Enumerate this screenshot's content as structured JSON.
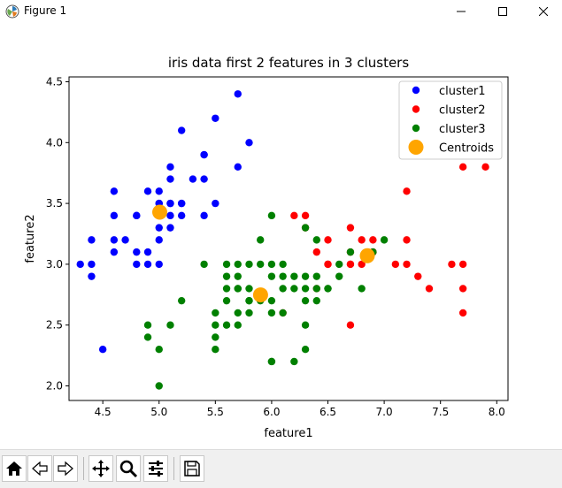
{
  "window": {
    "title": "Figure 1"
  },
  "toolbar": {
    "buttons": [
      {
        "icon": "home-icon"
      },
      {
        "icon": "back-arrow-icon"
      },
      {
        "icon": "forward-arrow-icon"
      },
      {
        "icon": "pan-icon"
      },
      {
        "icon": "zoom-icon"
      },
      {
        "icon": "configure-subplots-icon"
      },
      {
        "icon": "save-icon"
      }
    ]
  },
  "chart_data": {
    "type": "scatter",
    "title": "iris data first 2 features in 3 clusters",
    "xlabel": "feature1",
    "ylabel": "feature2",
    "xlim": [
      4.2,
      8.1
    ],
    "ylim": [
      1.88,
      4.54
    ],
    "xticks": [
      4.5,
      5.0,
      5.5,
      6.0,
      6.5,
      7.0,
      7.5,
      8.0
    ],
    "xtick_labels": [
      "4.5",
      "5.0",
      "5.5",
      "6.0",
      "6.5",
      "7.0",
      "7.5",
      "8.0"
    ],
    "yticks": [
      2.0,
      2.5,
      3.0,
      3.5,
      4.0,
      4.5
    ],
    "ytick_labels": [
      "2.0",
      "2.5",
      "3.0",
      "3.5",
      "4.0",
      "4.5"
    ],
    "grid": false,
    "legend": {
      "placement": "top-right"
    },
    "series": [
      {
        "name": "cluster1",
        "color": "#0000ff",
        "points": [
          [
            4.3,
            3.0
          ],
          [
            4.4,
            2.9
          ],
          [
            4.4,
            3.0
          ],
          [
            4.4,
            3.2
          ],
          [
            4.5,
            2.3
          ],
          [
            4.6,
            3.1
          ],
          [
            4.6,
            3.2
          ],
          [
            4.6,
            3.4
          ],
          [
            4.6,
            3.6
          ],
          [
            4.7,
            3.2
          ],
          [
            4.8,
            3.0
          ],
          [
            4.8,
            3.1
          ],
          [
            4.8,
            3.4
          ],
          [
            4.9,
            3.0
          ],
          [
            4.9,
            3.1
          ],
          [
            4.9,
            3.6
          ],
          [
            5.0,
            3.0
          ],
          [
            5.0,
            3.2
          ],
          [
            5.0,
            3.3
          ],
          [
            5.0,
            3.4
          ],
          [
            5.0,
            3.5
          ],
          [
            5.0,
            3.6
          ],
          [
            5.1,
            3.3
          ],
          [
            5.1,
            3.4
          ],
          [
            5.1,
            3.5
          ],
          [
            5.1,
            3.7
          ],
          [
            5.1,
            3.8
          ],
          [
            5.2,
            3.4
          ],
          [
            5.2,
            3.5
          ],
          [
            5.2,
            4.1
          ],
          [
            5.3,
            3.7
          ],
          [
            5.4,
            3.4
          ],
          [
            5.4,
            3.7
          ],
          [
            5.4,
            3.9
          ],
          [
            5.5,
            3.5
          ],
          [
            5.5,
            4.2
          ],
          [
            5.7,
            3.8
          ],
          [
            5.7,
            4.4
          ],
          [
            5.8,
            4.0
          ],
          [
            5.2,
            3.5
          ],
          [
            5.0,
            3.4
          ],
          [
            5.1,
            3.5
          ],
          [
            5.4,
            3.9
          ],
          [
            5.0,
            3.5
          ],
          [
            4.8,
            3.4
          ]
        ]
      },
      {
        "name": "cluster2",
        "color": "#ff0000",
        "points": [
          [
            6.1,
            2.6
          ],
          [
            6.2,
            3.4
          ],
          [
            6.3,
            3.4
          ],
          [
            6.3,
            3.3
          ],
          [
            6.4,
            3.1
          ],
          [
            6.5,
            3.0
          ],
          [
            6.5,
            3.2
          ],
          [
            6.7,
            2.5
          ],
          [
            6.7,
            3.0
          ],
          [
            6.7,
            3.1
          ],
          [
            6.7,
            3.3
          ],
          [
            6.8,
            3.0
          ],
          [
            6.8,
            3.2
          ],
          [
            6.9,
            3.1
          ],
          [
            6.9,
            3.2
          ],
          [
            7.1,
            3.0
          ],
          [
            7.2,
            3.0
          ],
          [
            7.2,
            3.2
          ],
          [
            7.2,
            3.6
          ],
          [
            7.3,
            2.9
          ],
          [
            7.4,
            2.8
          ],
          [
            7.6,
            3.0
          ],
          [
            7.7,
            2.6
          ],
          [
            7.7,
            2.8
          ],
          [
            7.7,
            3.0
          ],
          [
            7.7,
            3.8
          ],
          [
            7.9,
            3.8
          ],
          [
            6.9,
            3.1
          ],
          [
            6.4,
            2.8
          ],
          [
            6.5,
            3.0
          ],
          [
            6.7,
            3.0
          ]
        ]
      },
      {
        "name": "cluster3",
        "color": "#008000",
        "points": [
          [
            4.9,
            2.4
          ],
          [
            4.9,
            2.5
          ],
          [
            5.0,
            2.0
          ],
          [
            5.0,
            2.3
          ],
          [
            5.1,
            2.5
          ],
          [
            5.2,
            2.7
          ],
          [
            5.4,
            3.0
          ],
          [
            5.5,
            2.3
          ],
          [
            5.5,
            2.4
          ],
          [
            5.5,
            2.5
          ],
          [
            5.5,
            2.6
          ],
          [
            5.6,
            2.5
          ],
          [
            5.6,
            2.7
          ],
          [
            5.6,
            2.8
          ],
          [
            5.6,
            2.9
          ],
          [
            5.6,
            3.0
          ],
          [
            5.7,
            2.5
          ],
          [
            5.7,
            2.6
          ],
          [
            5.7,
            2.8
          ],
          [
            5.7,
            2.9
          ],
          [
            5.7,
            3.0
          ],
          [
            5.8,
            2.6
          ],
          [
            5.8,
            2.7
          ],
          [
            5.8,
            2.8
          ],
          [
            5.8,
            3.0
          ],
          [
            5.9,
            3.0
          ],
          [
            5.9,
            3.2
          ],
          [
            6.0,
            2.2
          ],
          [
            6.0,
            2.7
          ],
          [
            6.0,
            2.9
          ],
          [
            6.0,
            3.0
          ],
          [
            6.0,
            3.4
          ],
          [
            6.1,
            2.8
          ],
          [
            6.1,
            2.9
          ],
          [
            6.1,
            3.0
          ],
          [
            6.2,
            2.2
          ],
          [
            6.2,
            2.8
          ],
          [
            6.2,
            2.9
          ],
          [
            6.3,
            2.3
          ],
          [
            6.3,
            2.5
          ],
          [
            6.3,
            2.7
          ],
          [
            6.3,
            2.8
          ],
          [
            6.3,
            2.9
          ],
          [
            6.3,
            3.3
          ],
          [
            6.4,
            2.7
          ],
          [
            6.4,
            2.8
          ],
          [
            6.4,
            2.9
          ],
          [
            6.4,
            3.2
          ],
          [
            6.5,
            2.8
          ],
          [
            6.6,
            2.9
          ],
          [
            6.6,
            3.0
          ],
          [
            6.7,
            3.1
          ],
          [
            6.8,
            2.8
          ],
          [
            6.9,
            3.1
          ],
          [
            7.0,
            3.2
          ],
          [
            6.1,
            2.6
          ],
          [
            5.8,
            2.7
          ],
          [
            5.7,
            2.8
          ],
          [
            6.0,
            2.2
          ],
          [
            6.5,
            2.8
          ],
          [
            6.0,
            2.6
          ],
          [
            5.9,
            2.7
          ]
        ]
      }
    ],
    "centroids": {
      "name": "Centroids",
      "color": "#ffa500",
      "points": [
        [
          5.006,
          3.428
        ],
        [
          6.85,
          3.07
        ],
        [
          5.9016,
          2.748
        ]
      ]
    }
  }
}
